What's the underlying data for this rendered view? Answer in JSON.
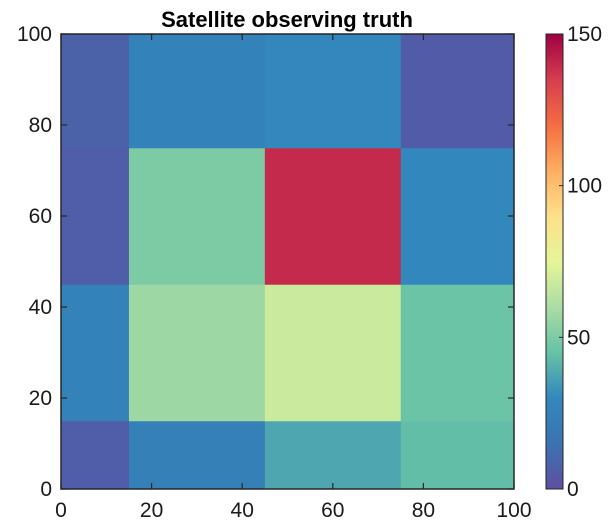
{
  "chart_data": {
    "type": "heatmap",
    "title": "Satellite observing truth",
    "xlabel": "",
    "ylabel": "",
    "xlim": [
      0,
      100
    ],
    "ylim": [
      0,
      100
    ],
    "x_ticks": [
      0,
      20,
      40,
      60,
      80,
      100
    ],
    "y_ticks": [
      0,
      20,
      40,
      60,
      80,
      100
    ],
    "x_edges": [
      0,
      15,
      45,
      75,
      100
    ],
    "y_edges": [
      0,
      15,
      45,
      75,
      100
    ],
    "values": [
      [
        6,
        24,
        38,
        44
      ],
      [
        26,
        57,
        68,
        46
      ],
      [
        6,
        50,
        140,
        30
      ],
      [
        8,
        26,
        29,
        5
      ]
    ],
    "colorbar": {
      "min": 0,
      "max": 150,
      "ticks": [
        0,
        50,
        100,
        150
      ],
      "colormap": "spectral",
      "stops": [
        [
          0.0,
          "#5e4fa2"
        ],
        [
          0.1,
          "#3b73b0"
        ],
        [
          0.2,
          "#3288bd"
        ],
        [
          0.3,
          "#66c2a5"
        ],
        [
          0.4,
          "#abdda4"
        ],
        [
          0.5,
          "#e6f598"
        ],
        [
          0.6,
          "#fee08b"
        ],
        [
          0.7,
          "#fdae61"
        ],
        [
          0.8,
          "#f46d43"
        ],
        [
          0.9,
          "#d53e4f"
        ],
        [
          1.0,
          "#9e0142"
        ]
      ]
    },
    "grid": false
  }
}
